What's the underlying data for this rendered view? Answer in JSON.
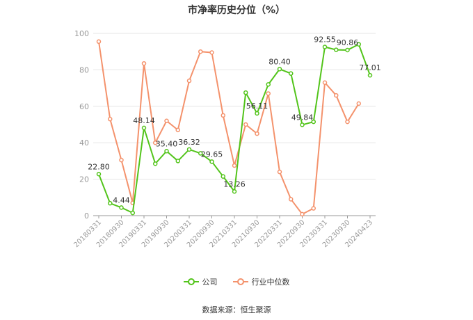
{
  "chart_data": {
    "type": "line",
    "title": "市净率历史分位（%）",
    "source_label": "数据来源：恒生聚源",
    "ylim": [
      0,
      100
    ],
    "yticks": [
      0,
      20,
      40,
      60,
      80,
      100
    ],
    "grid": true,
    "legend_position": "bottom",
    "x_tick_labels": [
      "20180331",
      "20180930",
      "20190331",
      "20190930",
      "20200331",
      "20200930",
      "20210331",
      "20210930",
      "20220331",
      "20220930",
      "20230331",
      "20230930",
      "20240423"
    ],
    "series": [
      {
        "name": "公司",
        "color": "#52c41a",
        "values": [
          22.8,
          6.8,
          4.44,
          1.5,
          48.14,
          28.5,
          35.4,
          30.0,
          36.32,
          34.2,
          29.65,
          21.5,
          13.26,
          67.5,
          56.11,
          72.0,
          80.4,
          78.0,
          49.84,
          51.5,
          92.55,
          91.0,
          90.86,
          94.0,
          77.01
        ],
        "labels": [
          "22.80",
          "",
          "4.44",
          "",
          "48.14",
          "",
          "35.40",
          "",
          "36.32",
          "",
          "29.65",
          "",
          "13.26",
          "",
          "56.11",
          "",
          "80.40",
          "",
          "49.84",
          "",
          "92.55",
          "",
          "90.86",
          "",
          "77.01"
        ]
      },
      {
        "name": "行业中位数",
        "color": "#f4926c",
        "values": [
          95.5,
          53.0,
          30.5,
          7.0,
          83.5,
          40.0,
          52.0,
          47.0,
          74.0,
          90.0,
          89.5,
          55.0,
          27.5,
          50.0,
          45.0,
          67.0,
          24.0,
          9.0,
          0.8,
          4.0,
          73.0,
          66.0,
          51.5,
          61.5,
          null
        ]
      }
    ]
  }
}
